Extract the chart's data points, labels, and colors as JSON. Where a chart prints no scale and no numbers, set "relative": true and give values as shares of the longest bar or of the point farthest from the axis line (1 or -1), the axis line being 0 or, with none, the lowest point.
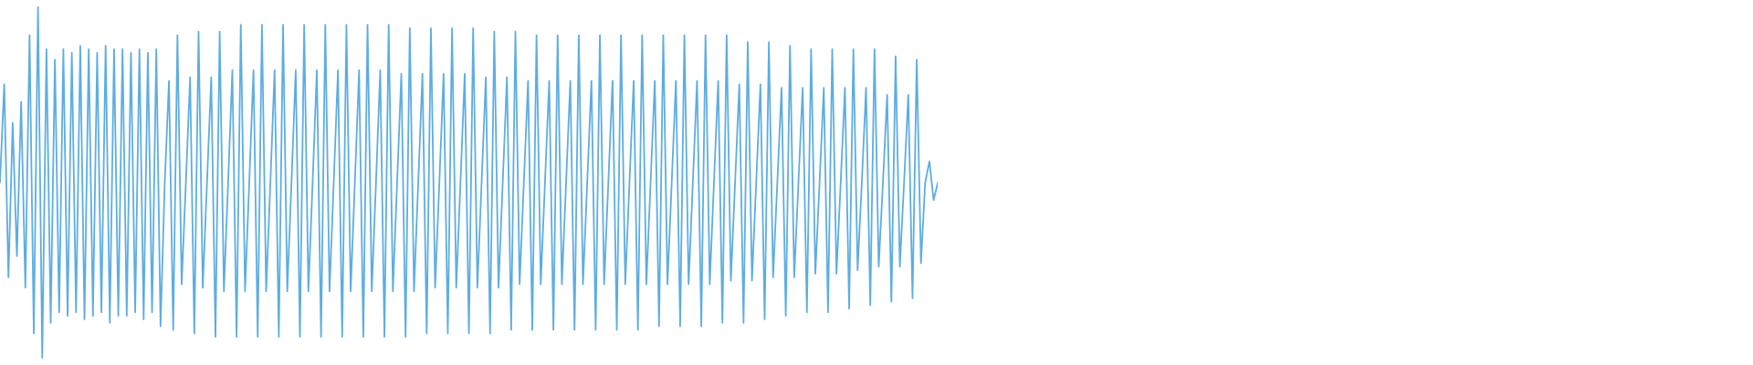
{
  "chart_data": {
    "type": "line",
    "relative": true,
    "categories": [
      null,
      null,
      null,
      null,
      null,
      null,
      null,
      null,
      null,
      null,
      null,
      null,
      null,
      null,
      null,
      null,
      null,
      null,
      null,
      null,
      null,
      null,
      null,
      null,
      null,
      null,
      null,
      null,
      null,
      null,
      null,
      null,
      null,
      null,
      null,
      null,
      null,
      null,
      null,
      null,
      null,
      null,
      null,
      null,
      null,
      null,
      null,
      null,
      null,
      null,
      null,
      null,
      null,
      null,
      null,
      null,
      null,
      null,
      null,
      null,
      null,
      null,
      null,
      null,
      null,
      null,
      null,
      null,
      null,
      null,
      null,
      null,
      null,
      null,
      null,
      null,
      null,
      null,
      null,
      null,
      null,
      null,
      null,
      null,
      null,
      null,
      null,
      null,
      null,
      null,
      null,
      null,
      null,
      null,
      null,
      null,
      null,
      null,
      null,
      null,
      null,
      null,
      null,
      null,
      null,
      null,
      null,
      null,
      null,
      null,
      null,
      null,
      null,
      null,
      null,
      null,
      null,
      null,
      null,
      null,
      null,
      null,
      null,
      null,
      null,
      null,
      null,
      null,
      null,
      null,
      null,
      null,
      null,
      null,
      null,
      null,
      null,
      null,
      null,
      null,
      null,
      null,
      null,
      null,
      null,
      null,
      null,
      null,
      null,
      null,
      null,
      null,
      null,
      null,
      null,
      null,
      null,
      null,
      null,
      null,
      null,
      null,
      null,
      null,
      null,
      null,
      null,
      null,
      null,
      null,
      null,
      null,
      null,
      null,
      null,
      null,
      null,
      null,
      null,
      null,
      null,
      null,
      null,
      null,
      null,
      null,
      null,
      null,
      null,
      null,
      null,
      null,
      null,
      null,
      null,
      null,
      null,
      null,
      null,
      null,
      null,
      null,
      null,
      null,
      null,
      null,
      null,
      null,
      null,
      null,
      null,
      null,
      null,
      null,
      null,
      null,
      null,
      null,
      null,
      null,
      null,
      null,
      null
    ],
    "series": [
      {
        "color": "#5dade2",
        "values": [
          0.5,
          0.78,
          0.23,
          0.67,
          0.29,
          0.73,
          0.2,
          0.92,
          0.07,
          1,
          0,
          0.88,
          0.1,
          0.85,
          0.13,
          0.88,
          0.12,
          0.87,
          0.13,
          0.89,
          0.11,
          0.88,
          0.12,
          0.87,
          0.13,
          0.89,
          0.1,
          0.88,
          0.12,
          0.88,
          0.12,
          0.87,
          0.13,
          0.88,
          0.11,
          0.87,
          0.13,
          0.88,
          0.09,
          0.5,
          0.79,
          0.08,
          0.92,
          0.21,
          0.5,
          0.8,
          0.07,
          0.93,
          0.2,
          0.5,
          0.8,
          0.06,
          0.93,
          0.19,
          0.5,
          0.82,
          0.06,
          0.95,
          0.19,
          0.5,
          0.82,
          0.06,
          0.95,
          0.19,
          0.5,
          0.82,
          0.06,
          0.95,
          0.19,
          0.5,
          0.82,
          0.06,
          0.95,
          0.19,
          0.5,
          0.82,
          0.06,
          0.95,
          0.19,
          0.5,
          0.82,
          0.06,
          0.95,
          0.19,
          0.5,
          0.82,
          0.06,
          0.95,
          0.19,
          0.5,
          0.82,
          0.06,
          0.95,
          0.19,
          0.5,
          0.81,
          0.06,
          0.94,
          0.19,
          0.5,
          0.81,
          0.07,
          0.94,
          0.2,
          0.5,
          0.81,
          0.07,
          0.94,
          0.2,
          0.5,
          0.81,
          0.07,
          0.94,
          0.2,
          0.5,
          0.8,
          0.07,
          0.93,
          0.2,
          0.5,
          0.8,
          0.08,
          0.93,
          0.21,
          0.5,
          0.79,
          0.08,
          0.92,
          0.21,
          0.5,
          0.79,
          0.08,
          0.92,
          0.21,
          0.5,
          0.79,
          0.08,
          0.92,
          0.21,
          0.5,
          0.79,
          0.08,
          0.92,
          0.21,
          0.5,
          0.79,
          0.08,
          0.92,
          0.21,
          0.5,
          0.79,
          0.08,
          0.92,
          0.21,
          0.5,
          0.79,
          0.09,
          0.92,
          0.21,
          0.5,
          0.79,
          0.09,
          0.92,
          0.21,
          0.5,
          0.79,
          0.09,
          0.92,
          0.21,
          0.5,
          0.79,
          0.1,
          0.92,
          0.22,
          0.5,
          0.78,
          0.1,
          0.9,
          0.22,
          0.5,
          0.78,
          0.11,
          0.9,
          0.23,
          0.5,
          0.77,
          0.12,
          0.89,
          0.23,
          0.5,
          0.77,
          0.13,
          0.88,
          0.24,
          0.5,
          0.77,
          0.13,
          0.88,
          0.24,
          0.5,
          0.77,
          0.14,
          0.88,
          0.25,
          0.5,
          0.77,
          0.15,
          0.88,
          0.26,
          0.5,
          0.75,
          0.16,
          0.86,
          0.26,
          0.5,
          0.75,
          0.17,
          0.85,
          0.27,
          0.5,
          0.56,
          0.45,
          0.5
        ]
      }
    ]
  }
}
